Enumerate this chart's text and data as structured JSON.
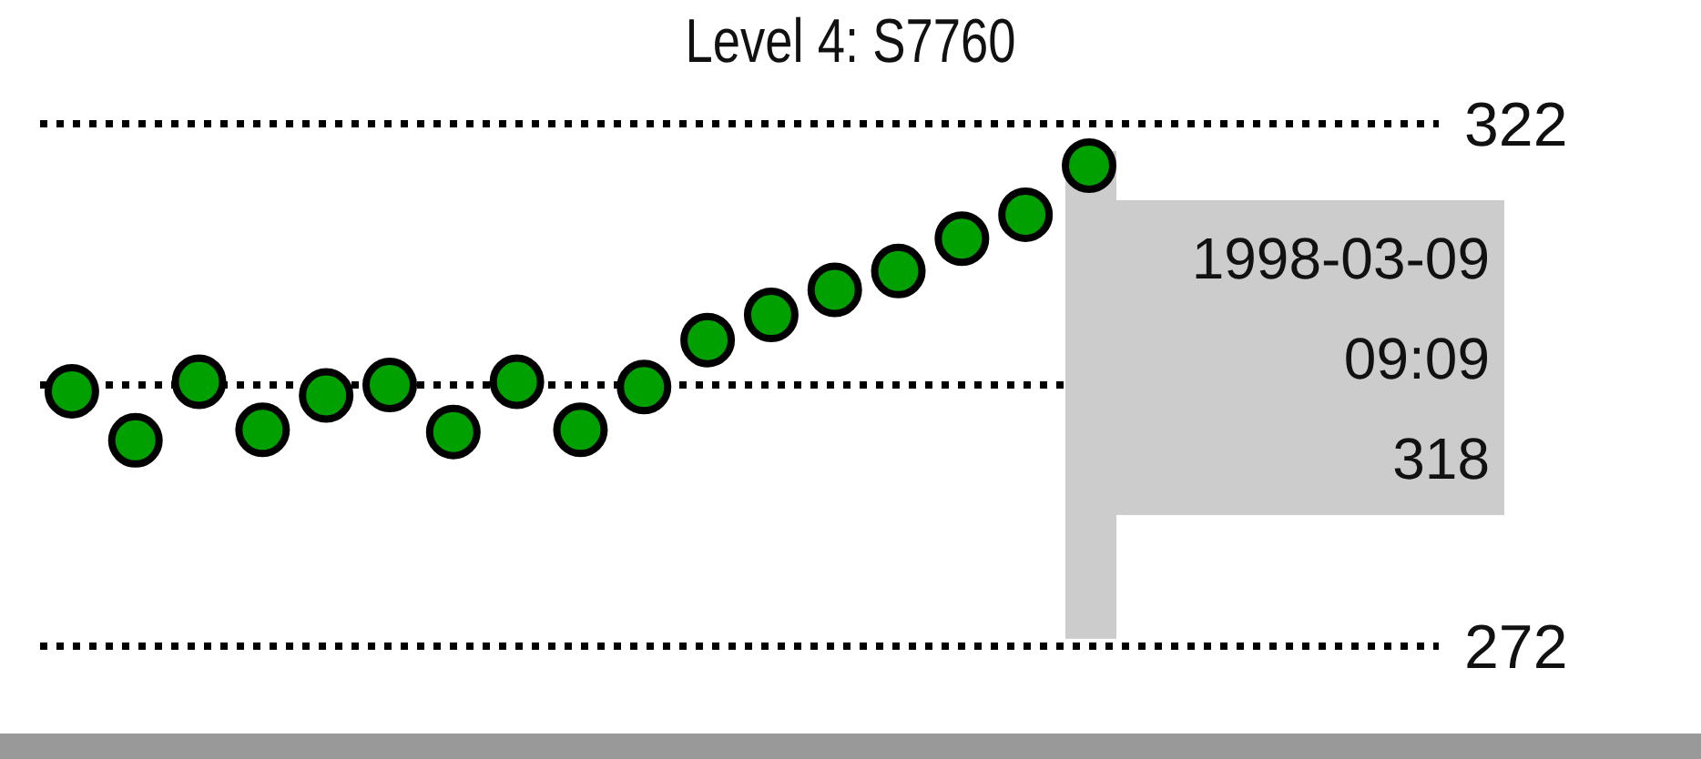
{
  "chart_data": {
    "type": "scatter",
    "title": "Level 4: S7760",
    "categories": [
      null,
      null,
      null,
      null,
      null,
      null,
      null,
      null,
      null,
      null,
      null,
      null,
      null,
      null,
      null,
      null,
      null,
      null,
      null,
      null,
      null,
      null
    ],
    "series": [
      {
        "color": "#00a000",
        "values": [
          296.4,
          291.7,
          297.3,
          292.7,
          296.0,
          297.0,
          292.5,
          297.3,
          292.7,
          296.8,
          301.3,
          303.7,
          306.1,
          307.9,
          311.0,
          313.3,
          318,
          null,
          null,
          null,
          null,
          null
        ]
      }
    ],
    "ylim": [
      272,
      322
    ],
    "yticks": [
      272,
      {
        "value": 297,
        "label": null
      },
      322
    ],
    "annotations": [
      "1998-03-09\n09:09\n318"
    ],
    "marker": "circle",
    "grid": "y",
    "tick_labels": "y"
  }
}
